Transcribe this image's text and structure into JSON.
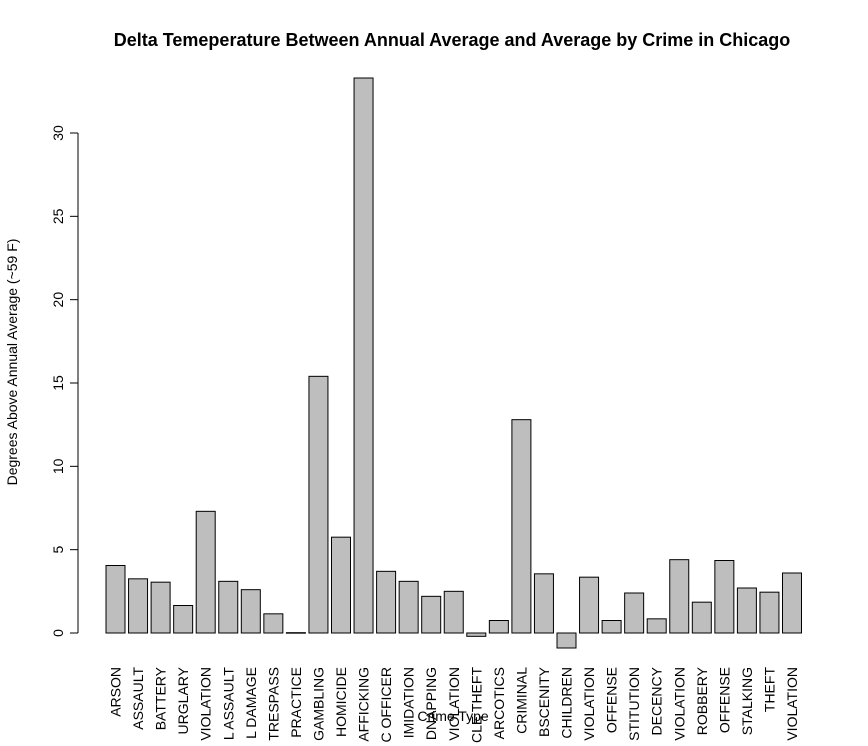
{
  "chart_data": {
    "type": "bar",
    "title": "Delta Temeperature Between Annual Average and Average by Crime in Chicago",
    "xlabel": "Crime Type",
    "ylabel": "Degrees Above Annual Average (~59 F)",
    "ylim": [
      -1,
      33.3
    ],
    "yticks": [
      0,
      5,
      10,
      15,
      20,
      25,
      30
    ],
    "grid": false,
    "bar_color": "#bebebe",
    "categories": [
      "ARSON",
      "ASSAULT",
      "BATTERY",
      "URGLARY",
      "VIOLATION",
      "L ASSAULT",
      "L DAMAGE",
      "TRESPASS",
      "PRACTICE",
      "GAMBLING",
      "HOMICIDE",
      "AFFICKING",
      "C OFFICER",
      "IMIDATION",
      "DNAPPING",
      "VIOLATION",
      "CLE THEFT",
      "ARCOTICS",
      "CRIMINAL",
      "BSCENITY",
      "CHILDREN",
      "VIOLATION",
      "OFFENSE",
      "STITUTION",
      "DECENCY",
      "VIOLATION",
      "ROBBERY",
      "OFFENSE",
      "STALKING",
      "THEFT",
      "VIOLATION"
    ],
    "values": [
      4.05,
      3.25,
      3.05,
      1.65,
      7.3,
      3.1,
      2.6,
      1.15,
      0.02,
      15.4,
      5.75,
      33.3,
      3.7,
      3.1,
      2.2,
      2.5,
      -0.2,
      0.75,
      12.8,
      3.55,
      -0.9,
      3.35,
      0.75,
      2.4,
      0.85,
      4.4,
      1.85,
      4.35,
      2.7,
      2.45,
      3.6
    ]
  }
}
